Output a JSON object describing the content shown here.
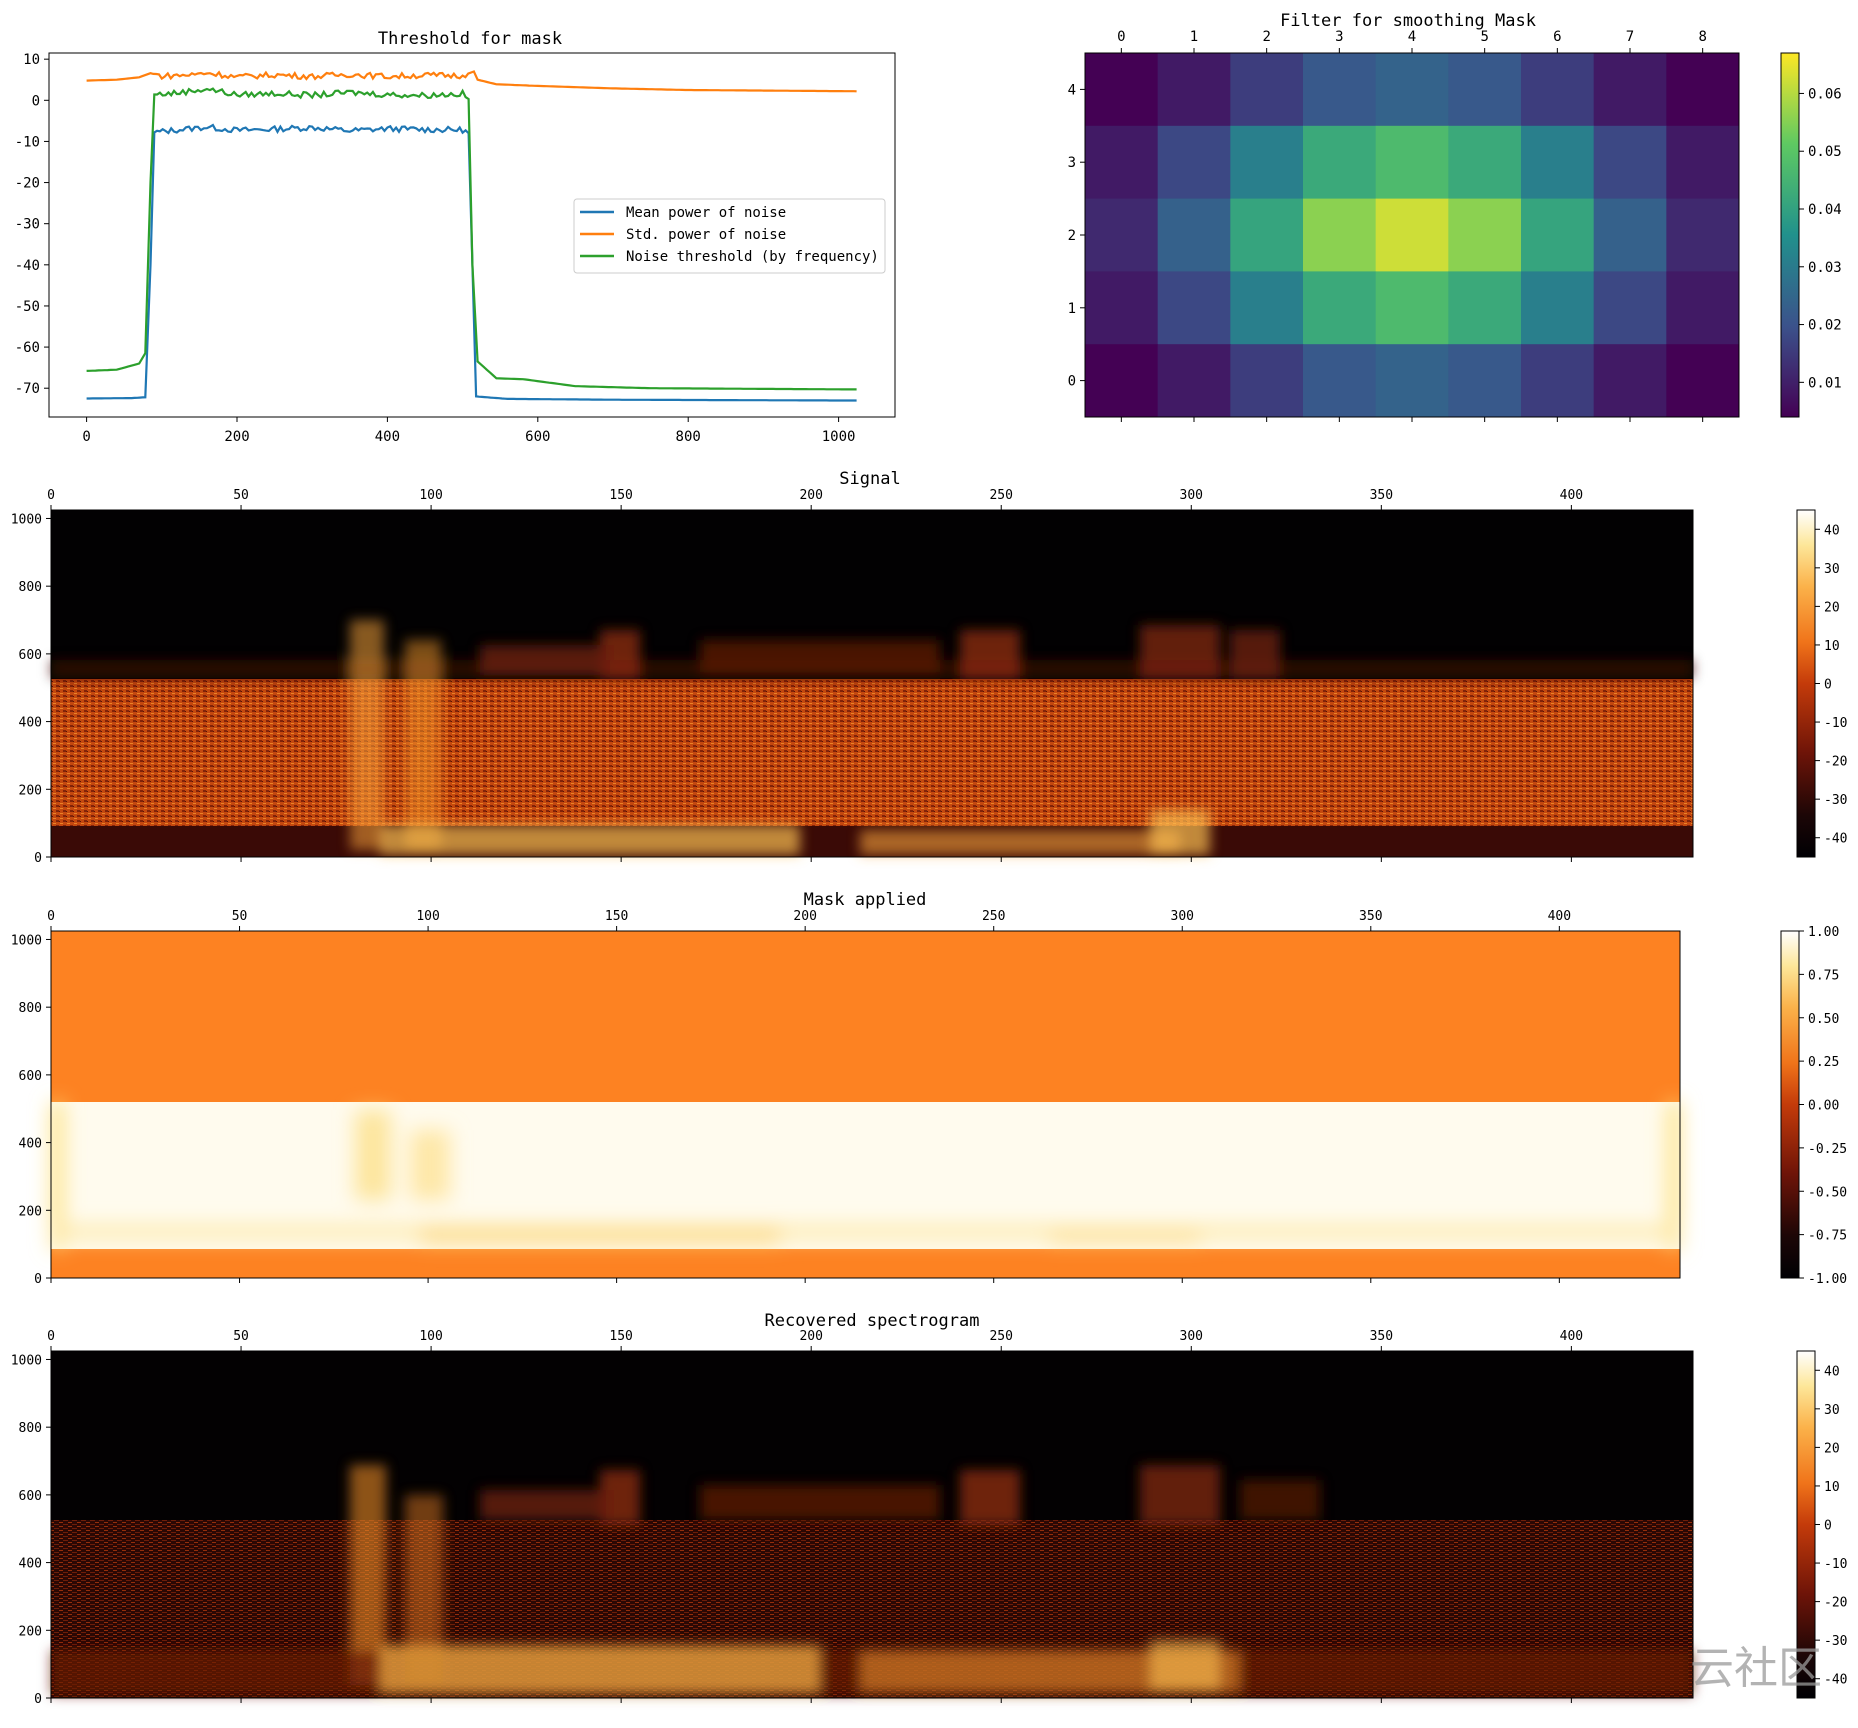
{
  "chart_data": [
    {
      "id": "threshold",
      "type": "line",
      "title": "Threshold for mask",
      "xlim": [
        -50,
        1075
      ],
      "ylim": [
        -77,
        11.5
      ],
      "xticks": [
        0,
        200,
        400,
        600,
        800,
        1000
      ],
      "yticks": [
        10,
        0,
        -10,
        -20,
        -30,
        -40,
        -50,
        -60,
        -70
      ],
      "legend_position": "center-right",
      "series": [
        {
          "name": "Mean power of noise",
          "color": "#1f77b4",
          "points": [
            [
              0,
              -72.5
            ],
            [
              60,
              -72.4
            ],
            [
              78,
              -72.2
            ],
            [
              85,
              -40
            ],
            [
              90,
              -7.8
            ],
            [
              120,
              -7.2
            ],
            [
              160,
              -6.5
            ],
            [
              200,
              -7.3
            ],
            [
              250,
              -7.0
            ],
            [
              300,
              -6.6
            ],
            [
              350,
              -7.4
            ],
            [
              400,
              -6.9
            ],
            [
              450,
              -7.1
            ],
            [
              500,
              -7.2
            ],
            [
              508,
              -8.0
            ],
            [
              513,
              -40
            ],
            [
              518,
              -72.0
            ],
            [
              560,
              -72.6
            ],
            [
              700,
              -72.8
            ],
            [
              1024,
              -73.0
            ]
          ]
        },
        {
          "name": "Std. power of noise",
          "color": "#ff7f0e",
          "points": [
            [
              0,
              4.8
            ],
            [
              40,
              5.0
            ],
            [
              70,
              5.6
            ],
            [
              85,
              6.6
            ],
            [
              100,
              5.9
            ],
            [
              140,
              6.2
            ],
            [
              160,
              6.7
            ],
            [
              200,
              5.7
            ],
            [
              250,
              6.2
            ],
            [
              300,
              5.8
            ],
            [
              350,
              6.3
            ],
            [
              400,
              5.8
            ],
            [
              450,
              6.1
            ],
            [
              500,
              6.0
            ],
            [
              515,
              7.0
            ],
            [
              520,
              5.0
            ],
            [
              545,
              3.9
            ],
            [
              600,
              3.5
            ],
            [
              700,
              2.9
            ],
            [
              800,
              2.5
            ],
            [
              1024,
              2.2
            ]
          ]
        },
        {
          "name": "Noise threshold (by frequency)",
          "color": "#2ca02c",
          "points": [
            [
              0,
              -65.8
            ],
            [
              40,
              -65.5
            ],
            [
              70,
              -64.0
            ],
            [
              78,
              -61.5
            ],
            [
              85,
              -20
            ],
            [
              90,
              1.4
            ],
            [
              120,
              1.8
            ],
            [
              160,
              2.8
            ],
            [
              200,
              1.3
            ],
            [
              250,
              1.7
            ],
            [
              300,
              1.2
            ],
            [
              350,
              1.9
            ],
            [
              400,
              1.4
            ],
            [
              450,
              1.2
            ],
            [
              500,
              1.6
            ],
            [
              508,
              0.3
            ],
            [
              513,
              -40
            ],
            [
              520,
              -63.5
            ],
            [
              545,
              -67.6
            ],
            [
              580,
              -67.8
            ],
            [
              650,
              -69.5
            ],
            [
              750,
              -70.0
            ],
            [
              1024,
              -70.3
            ]
          ]
        }
      ]
    },
    {
      "id": "filter",
      "type": "heatmap",
      "title": "Filter for smoothing Mask",
      "xticks": [
        0,
        1,
        2,
        3,
        4,
        5,
        6,
        7,
        8
      ],
      "yticks": [
        4,
        3,
        2,
        1,
        0
      ],
      "values": [
        [
          0.0036,
          0.0089,
          0.0156,
          0.0215,
          0.024,
          0.0215,
          0.0156,
          0.0089,
          0.0036
        ],
        [
          0.0089,
          0.0178,
          0.0309,
          0.0422,
          0.0471,
          0.0422,
          0.0309,
          0.0178,
          0.0089
        ],
        [
          0.0118,
          0.0236,
          0.0409,
          0.0557,
          0.0622,
          0.0557,
          0.0409,
          0.0236,
          0.0118
        ],
        [
          0.0089,
          0.0178,
          0.0309,
          0.0422,
          0.0471,
          0.0422,
          0.0309,
          0.0178,
          0.0089
        ],
        [
          0.0036,
          0.0089,
          0.0156,
          0.0215,
          0.024,
          0.0215,
          0.0156,
          0.0089,
          0.0036
        ]
      ],
      "vmin": 0.004,
      "vmax": 0.067,
      "colorbar_ticks": [
        "0.06",
        "0.05",
        "0.04",
        "0.03",
        "0.02",
        "0.01"
      ]
    },
    {
      "id": "signal",
      "type": "heatmap",
      "title": "Signal",
      "xticks": [
        0,
        50,
        100,
        150,
        200,
        250,
        300,
        350,
        400
      ],
      "yticks": [
        1000,
        800,
        600,
        400,
        200,
        0
      ],
      "xlim": [
        0,
        432
      ],
      "ylim": [
        0,
        1025
      ],
      "colorbar_ticks": [
        "40",
        "30",
        "20",
        "10",
        "0",
        "-10",
        "-20",
        "-30",
        "-40"
      ],
      "vmin": -45,
      "vmax": 45
    },
    {
      "id": "mask",
      "type": "heatmap",
      "title": "Mask applied",
      "xticks": [
        0,
        50,
        100,
        150,
        200,
        250,
        300,
        350,
        400
      ],
      "yticks": [
        1000,
        800,
        600,
        400,
        200,
        0
      ],
      "xlim": [
        0,
        432
      ],
      "ylim": [
        0,
        1025
      ],
      "colorbar_ticks": [
        "1.00",
        "0.75",
        "0.50",
        "0.25",
        "0.00",
        "-0.25",
        "-0.50",
        "-0.75",
        "-1.00"
      ],
      "vmin": -1,
      "vmax": 1
    },
    {
      "id": "recovered",
      "type": "heatmap",
      "title": "Recovered spectrogram",
      "xticks": [
        0,
        50,
        100,
        150,
        200,
        250,
        300,
        350,
        400
      ],
      "yticks": [
        1000,
        800,
        600,
        400,
        200,
        0
      ],
      "xlim": [
        0,
        432
      ],
      "ylim": [
        0,
        1025
      ],
      "colorbar_ticks": [
        "40",
        "30",
        "20",
        "10",
        "0",
        "-10",
        "-20",
        "-30",
        "-40"
      ],
      "vmin": -45,
      "vmax": 45
    }
  ],
  "watermark": "云社区"
}
